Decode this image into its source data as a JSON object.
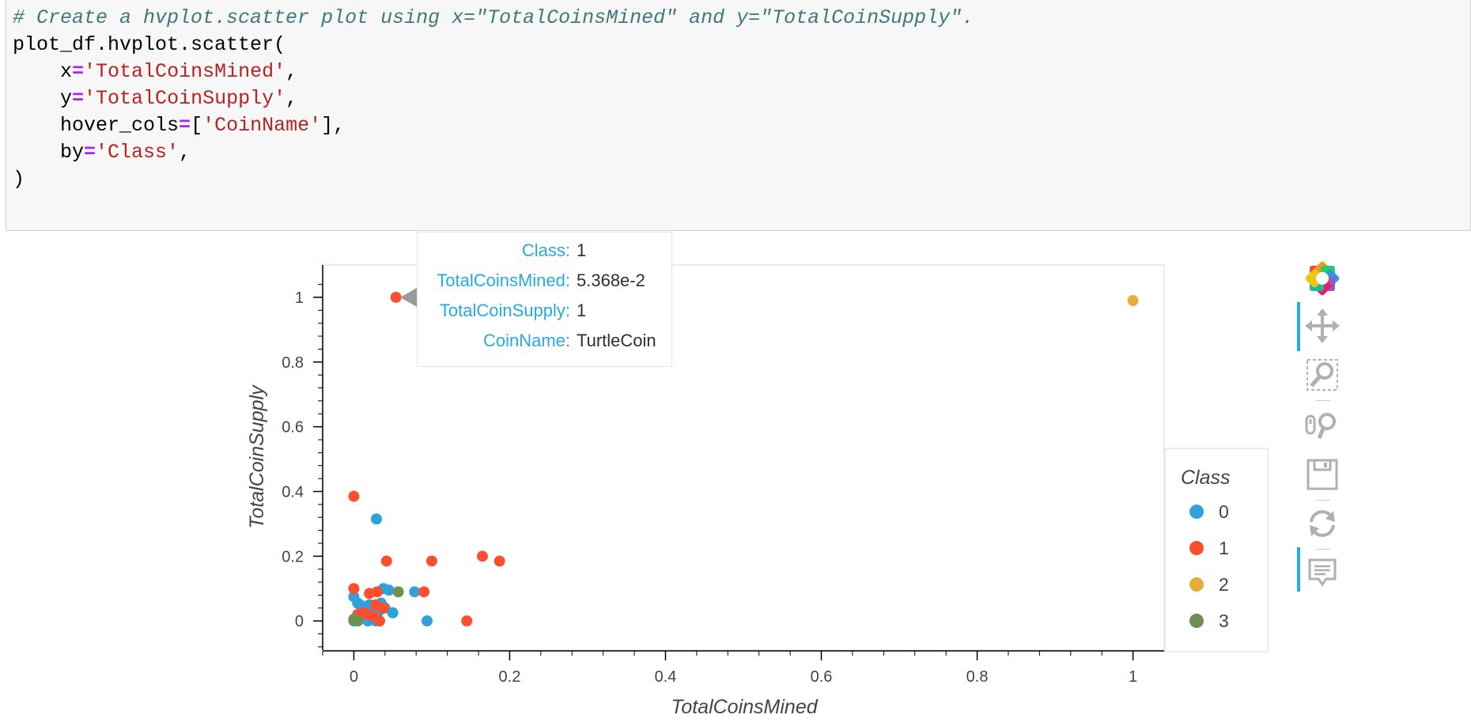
{
  "code": {
    "line1": "# Create a hvplot.scatter plot using x=\"TotalCoinsMined\" and y=\"TotalCoinSupply\".",
    "line2": "plot_df.hvplot.scatter(",
    "line3_arg": "x",
    "line3_val": "'TotalCoinsMined'",
    "line4_arg": "y",
    "line4_val": "'TotalCoinSupply'",
    "line5_arg": "hover_cols",
    "line5_val": "'CoinName'",
    "line6_arg": "by",
    "line6_val": "'Class'",
    "line7": ")",
    "eq": "=",
    "comma": ",",
    "open_bracket": "[",
    "close_bracket_comma": "],",
    "indent": "    "
  },
  "chart_data": {
    "type": "scatter",
    "xlabel": "TotalCoinsMined",
    "ylabel": "TotalCoinSupply",
    "xlim": [
      -0.04,
      1.04
    ],
    "ylim": [
      -0.09,
      1.1
    ],
    "x_ticks": [
      {
        "value": 0,
        "label": "0"
      },
      {
        "value": 0.2,
        "label": "0.2"
      },
      {
        "value": 0.4,
        "label": "0.4"
      },
      {
        "value": 0.6,
        "label": "0.6"
      },
      {
        "value": 0.8,
        "label": "0.8"
      },
      {
        "value": 1,
        "label": "1"
      }
    ],
    "y_ticks": [
      {
        "value": 0,
        "label": "0"
      },
      {
        "value": 0.2,
        "label": "0.2"
      },
      {
        "value": 0.4,
        "label": "0.4"
      },
      {
        "value": 0.6,
        "label": "0.6"
      },
      {
        "value": 0.8,
        "label": "0.8"
      },
      {
        "value": 1,
        "label": "1"
      }
    ],
    "legend_title": "Class",
    "legend_position": "right",
    "series": [
      {
        "name": "0",
        "color": "#30a2da",
        "x": [
          0.029,
          0.0,
          0.005,
          0.008,
          0.012,
          0.015,
          0.018,
          0.022,
          0.025,
          0.028,
          0.032,
          0.035,
          0.038,
          0.04,
          0.045,
          0.05,
          0.078,
          0.094,
          0.01,
          0.003,
          0.02,
          0.015,
          0.0
        ],
        "y": [
          0.315,
          0.075,
          0.055,
          0.05,
          0.04,
          0.01,
          0.0,
          0.02,
          0.045,
          0.0,
          0.03,
          0.055,
          0.1,
          0.04,
          0.095,
          0.025,
          0.09,
          0.0,
          0.015,
          0.005,
          0.05,
          0.02,
          0.0
        ]
      },
      {
        "name": "1",
        "color": "#fc4f30",
        "x": [
          0.054,
          0.0,
          0.042,
          0.1,
          0.165,
          0.187,
          0.0,
          0.02,
          0.03,
          0.038,
          0.09,
          0.145,
          0.033,
          0.005,
          0.012,
          0.018,
          0.025,
          0.0,
          0.028
        ],
        "y": [
          1.0,
          0.385,
          0.185,
          0.185,
          0.2,
          0.185,
          0.1,
          0.085,
          0.09,
          0.04,
          0.09,
          0.0,
          0.0,
          0.02,
          0.025,
          0.02,
          0.015,
          0.005,
          0.05
        ]
      },
      {
        "name": "2",
        "color": "#e5ae38",
        "x": [
          1.0
        ],
        "y": [
          0.99
        ]
      },
      {
        "name": "3",
        "color": "#6d904f",
        "x": [
          0.057,
          0.0,
          0.005
        ],
        "y": [
          0.09,
          0.005,
          0.0
        ]
      }
    ]
  },
  "tooltip": {
    "rows": [
      {
        "key": "Class:",
        "value": "1"
      },
      {
        "key": "TotalCoinsMined:",
        "value": "5.368e-2"
      },
      {
        "key": "TotalCoinSupply:",
        "value": "1"
      },
      {
        "key": "CoinName:",
        "value": "TurtleCoin"
      }
    ]
  },
  "toolbar": {
    "logo_icon": "bokeh-logo-icon",
    "tools": [
      "pan-icon",
      "box-zoom-icon",
      "wheel-zoom-icon",
      "save-icon",
      "reset-icon",
      "hover-icon"
    ],
    "accent": "#26aae1"
  }
}
